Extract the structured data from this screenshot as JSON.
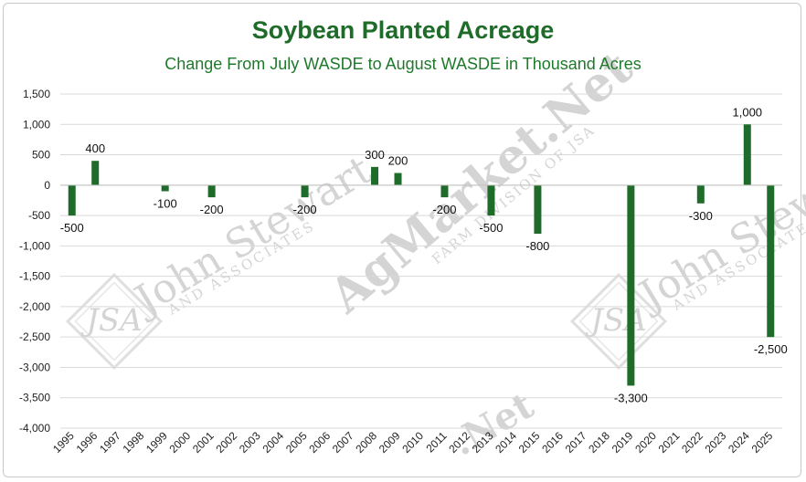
{
  "title": "Soybean Planted Acreage",
  "subtitle": "Change From July WASDE to August WASDE in Thousand Acres",
  "watermarks": [
    "John Stewart",
    "AND ASSOCIATES",
    "AgMarket.Net",
    "FARM DIVISION OF JSA"
  ],
  "colors": {
    "bar": "#1e6b2a",
    "title": "#1e6b2a",
    "gridline": "#d9d9d9"
  },
  "chart_data": {
    "type": "bar",
    "title": "Soybean Planted Acreage",
    "subtitle": "Change From July WASDE to August WASDE in Thousand Acres",
    "xlabel": "",
    "ylabel": "",
    "ylim": [
      -4000,
      1500
    ],
    "yticks": [
      1500,
      1000,
      500,
      0,
      -500,
      -1000,
      -1500,
      -2000,
      -2500,
      -3000,
      -3500,
      -4000
    ],
    "yticklabels": [
      "1,500",
      "1,000",
      "500",
      "0",
      "-500",
      "-1,000",
      "-1,500",
      "-2,000",
      "-2,500",
      "-3,000",
      "-3,500",
      "-4,000"
    ],
    "grid": true,
    "categories": [
      "1995",
      "1996",
      "1997",
      "1998",
      "1999",
      "2000",
      "2001",
      "2002",
      "2003",
      "2004",
      "2005",
      "2006",
      "2007",
      "2008",
      "2009",
      "2010",
      "2011",
      "2012",
      "2013",
      "2014",
      "2015",
      "2016",
      "2017",
      "2018",
      "2019",
      "2020",
      "2021",
      "2022",
      "2023",
      "2024",
      "2025"
    ],
    "values": [
      -500,
      400,
      0,
      0,
      -100,
      0,
      -200,
      0,
      0,
      0,
      -200,
      0,
      0,
      300,
      200,
      0,
      -200,
      0,
      -500,
      0,
      -800,
      0,
      0,
      0,
      -3300,
      0,
      0,
      -300,
      0,
      1000,
      -2500
    ],
    "data_labels": [
      "-500",
      "400",
      "",
      "",
      "-100",
      "",
      "-200",
      "",
      "",
      "",
      "-200",
      "",
      "",
      "300",
      "200",
      "",
      "-200",
      "",
      "-500",
      "",
      "-800",
      "",
      "",
      "",
      "-3,300",
      "",
      "",
      "-300",
      "",
      "1,000",
      "-2,500"
    ]
  }
}
